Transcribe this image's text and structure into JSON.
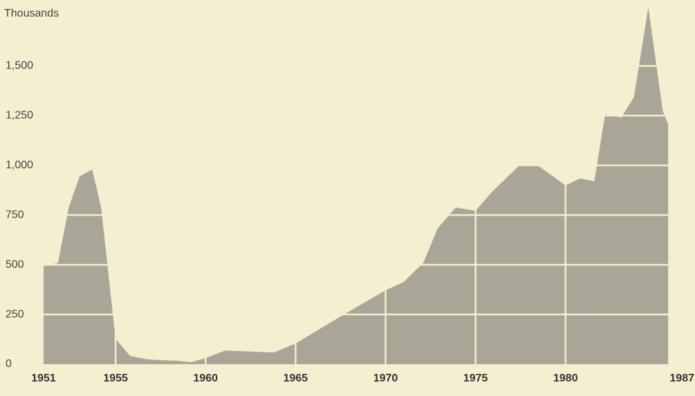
{
  "chart_data": {
    "type": "area",
    "y_label": "Thousands",
    "x": [
      1951,
      1951.8,
      1952.4,
      1953,
      1953.7,
      1954.2,
      1954.7,
      1955,
      1955.8,
      1956.8,
      1958.5,
      1959.2,
      1960,
      1961.1,
      1963.8,
      1965,
      1967.5,
      1970,
      1971,
      1972.1,
      1972.9,
      1973.9,
      1975,
      1975.9,
      1977.4,
      1978.5,
      1980,
      1980.8,
      1981.6,
      1982.2,
      1983.1,
      1983.8,
      1984.6,
      1985.4,
      1985.7
    ],
    "values": [
      493,
      510,
      788,
      944,
      979,
      788,
      372,
      128,
      42,
      24,
      17,
      10,
      31,
      69,
      59,
      104,
      240,
      372,
      413,
      510,
      684,
      788,
      771,
      865,
      997,
      997,
      899,
      934,
      920,
      1257,
      1240,
      1344,
      1795,
      1274,
      1205
    ],
    "color": "#a9a697",
    "xlim": [
      1951,
      1987
    ],
    "xticks": [
      1951,
      1955,
      1960,
      1965,
      1970,
      1975,
      1980,
      1987
    ],
    "ylim": [
      0,
      1800
    ],
    "yticks": [
      0,
      250,
      500,
      750,
      {
        "value": 1000,
        "label": "1,000"
      },
      {
        "value": 1250,
        "label": "1,250"
      },
      {
        "value": 1500,
        "label": "1,500"
      }
    ],
    "grid": true
  }
}
